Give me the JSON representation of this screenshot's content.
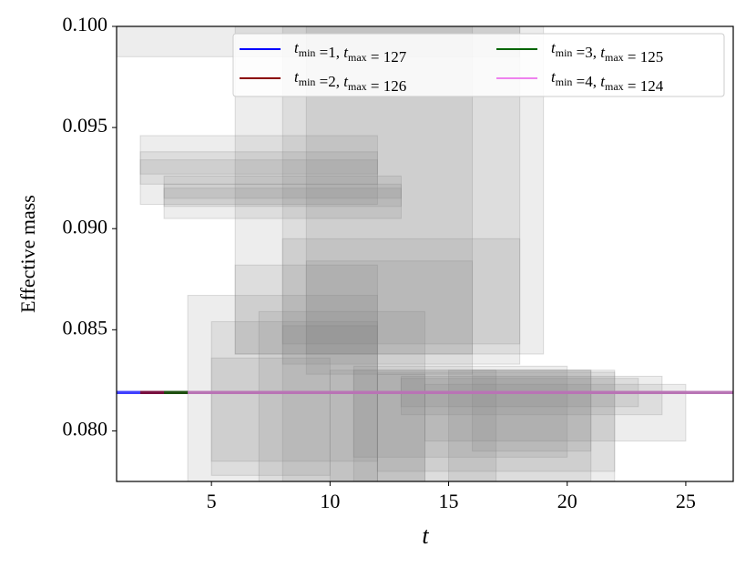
{
  "chart_data": {
    "type": "bands",
    "xlabel": "t",
    "ylabel": "Effective mass",
    "xlim": [
      1,
      27
    ],
    "ylim": [
      0.0775,
      0.1
    ],
    "xticks": [
      5,
      10,
      15,
      20,
      25
    ],
    "yticks": [
      {
        "value": 0.08,
        "label": "0.080"
      },
      0.085,
      {
        "value": 0.09,
        "label": "0.090"
      },
      0.095,
      {
        "value": 0.1,
        "label": "0.100"
      }
    ],
    "band_color": "#808080",
    "bands": [
      {
        "x": [
          1,
          18
        ],
        "y": [
          0.0985,
          0.1
        ]
      },
      {
        "x": [
          2,
          12
        ],
        "y": [
          0.0912,
          0.0946
        ]
      },
      {
        "x": [
          2,
          12
        ],
        "y": [
          0.0922,
          0.0938
        ]
      },
      {
        "x": [
          2,
          12
        ],
        "y": [
          0.0927,
          0.0934
        ]
      },
      {
        "x": [
          3,
          13
        ],
        "y": [
          0.0905,
          0.0926
        ]
      },
      {
        "x": [
          3,
          13
        ],
        "y": [
          0.0911,
          0.0922
        ]
      },
      {
        "x": [
          3,
          13
        ],
        "y": [
          0.0915,
          0.092
        ]
      },
      {
        "x": [
          6,
          19
        ],
        "y": [
          0.0838,
          0.1
        ]
      },
      {
        "x": [
          8,
          18
        ],
        "y": [
          0.0843,
          0.1
        ]
      },
      {
        "x": [
          9,
          16
        ],
        "y": [
          0.0828,
          0.1
        ]
      },
      {
        "x": [
          8,
          18
        ],
        "y": [
          0.0833,
          0.0895
        ]
      },
      {
        "x": [
          9,
          16
        ],
        "y": [
          0.0838,
          0.0884
        ]
      },
      {
        "x": [
          6,
          12
        ],
        "y": [
          0.0838,
          0.0882
        ]
      },
      {
        "x": [
          4,
          12
        ],
        "y": [
          0.0775,
          0.0867
        ]
      },
      {
        "x": [
          5,
          12
        ],
        "y": [
          0.0785,
          0.0854
        ]
      },
      {
        "x": [
          7,
          14
        ],
        "y": [
          0.0775,
          0.0859
        ]
      },
      {
        "x": [
          5,
          10
        ],
        "y": [
          0.0778,
          0.0836
        ]
      },
      {
        "x": [
          8,
          12
        ],
        "y": [
          0.0775,
          0.0852
        ]
      },
      {
        "x": [
          11,
          20
        ],
        "y": [
          0.0787,
          0.0832
        ]
      },
      {
        "x": [
          11,
          21
        ],
        "y": [
          0.0775,
          0.083
        ]
      },
      {
        "x": [
          12,
          22
        ],
        "y": [
          0.078,
          0.0829
        ]
      },
      {
        "x": [
          12,
          14
        ],
        "y": [
          0.0775,
          0.0828
        ]
      },
      {
        "x": [
          13,
          24
        ],
        "y": [
          0.0808,
          0.0827
        ]
      },
      {
        "x": [
          13,
          23
        ],
        "y": [
          0.0812,
          0.0826
        ]
      },
      {
        "x": [
          14,
          25
        ],
        "y": [
          0.0795,
          0.0823
        ]
      },
      {
        "x": [
          15,
          22
        ],
        "y": [
          0.0775,
          0.083
        ]
      },
      {
        "x": [
          16,
          21
        ],
        "y": [
          0.079,
          0.083
        ]
      },
      {
        "x": [
          10,
          17
        ],
        "y": [
          0.0775,
          0.083
        ]
      }
    ],
    "series": [
      {
        "name": "tmin =1, tmax = 127",
        "color": "#0000ff",
        "x": [
          1,
          27
        ],
        "values": [
          0.0819,
          0.0819
        ]
      },
      {
        "name": "tmin =2, tmax = 126",
        "color": "#8b0000",
        "x": [
          2,
          27
        ],
        "values": [
          0.0819,
          0.0819
        ]
      },
      {
        "name": "tmin =3, tmax = 125",
        "color": "#006400",
        "x": [
          3,
          27
        ],
        "values": [
          0.0819,
          0.0819
        ]
      },
      {
        "name": "tmin =4, tmax = 124",
        "color": "#ee82ee",
        "x": [
          4,
          27
        ],
        "values": [
          0.0819,
          0.0819
        ]
      }
    ]
  }
}
